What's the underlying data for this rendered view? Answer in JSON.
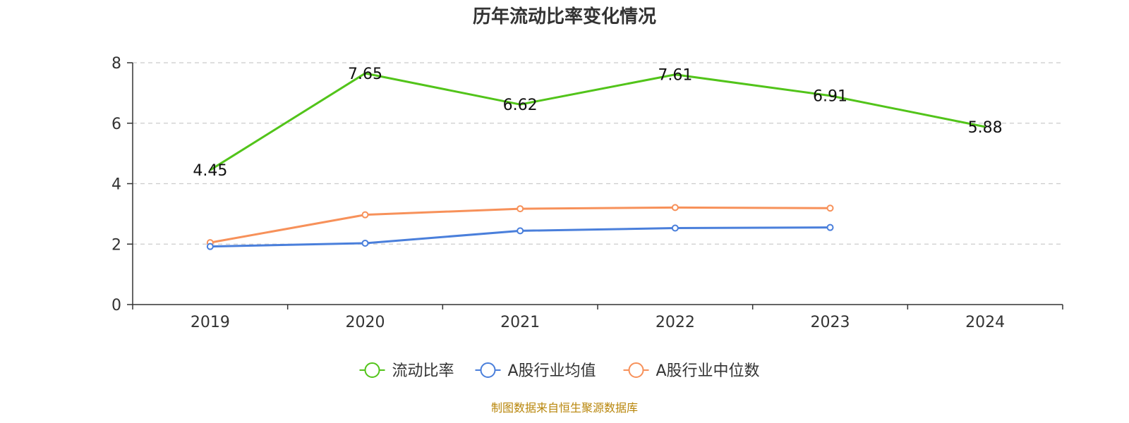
{
  "chart_data": {
    "type": "line",
    "title": "历年流动比率变化情况",
    "categories": [
      "2019",
      "2020",
      "2021",
      "2022",
      "2023",
      "2024"
    ],
    "ylim": [
      0,
      8
    ],
    "yticks": [
      0,
      2,
      4,
      6,
      8
    ],
    "grid": true,
    "legend_position": "bottom",
    "series": [
      {
        "name": "流动比率",
        "color": "#52c41a",
        "values": [
          4.45,
          7.65,
          6.62,
          7.61,
          6.91,
          5.88
        ],
        "labels": [
          "4.45",
          "7.65",
          "6.62",
          "7.61",
          "6.91",
          "5.88"
        ],
        "show_labels": true,
        "show_markers": false
      },
      {
        "name": "A股行业均值",
        "color": "#4a7fdb",
        "values": [
          1.92,
          2.03,
          2.44,
          2.53,
          2.55,
          null
        ],
        "show_labels": false,
        "show_markers": true
      },
      {
        "name": "A股行业中位数",
        "color": "#f7915a",
        "values": [
          2.05,
          2.97,
          3.17,
          3.21,
          3.19,
          null
        ],
        "show_labels": false,
        "show_markers": true
      }
    ]
  },
  "source_note": "制图数据来自恒生聚源数据库"
}
